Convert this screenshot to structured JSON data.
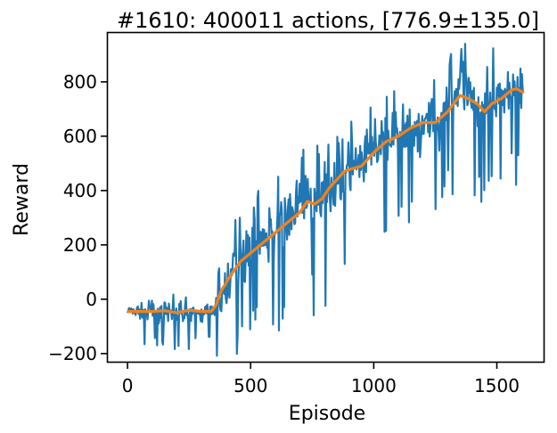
{
  "chart_data": {
    "type": "line",
    "title": "#1610: 400011 actions, [776.9±135.0]",
    "xlabel": "Episode",
    "ylabel": "Reward",
    "xlim": [
      -80,
      1690
    ],
    "ylim": [
      -230,
      980
    ],
    "xticks": [
      0,
      500,
      1000,
      1500
    ],
    "xtick_labels": [
      "0",
      "500",
      "1000",
      "1500"
    ],
    "yticks": [
      -200,
      0,
      200,
      400,
      600,
      800
    ],
    "ytick_labels": [
      "−200",
      "0",
      "200",
      "400",
      "600",
      "800"
    ],
    "grid": false,
    "legend": "none",
    "series": [
      {
        "color": "#1f77b4",
        "x": [
          0,
          30,
          60,
          90,
          120,
          150,
          180,
          210,
          240,
          270,
          300,
          330,
          350,
          370,
          400,
          430,
          460,
          490,
          520,
          550,
          580,
          610,
          640,
          670,
          700,
          730,
          760,
          790,
          820,
          850,
          880,
          910,
          940,
          970,
          1000,
          1030,
          1060,
          1090,
          1120,
          1150,
          1180,
          1210,
          1240,
          1270,
          1300,
          1330,
          1360,
          1390,
          1420,
          1450,
          1480,
          1510,
          1540,
          1570,
          1600,
          1610
        ],
        "values": [
          -45,
          -40,
          -50,
          -45,
          -40,
          -50,
          -55,
          -45,
          -40,
          -55,
          -50,
          -45,
          -40,
          -20,
          50,
          110,
          150,
          180,
          200,
          220,
          250,
          270,
          290,
          320,
          350,
          360,
          350,
          370,
          410,
          440,
          460,
          480,
          490,
          500,
          540,
          570,
          590,
          600,
          610,
          630,
          640,
          650,
          650,
          670,
          700,
          730,
          760,
          740,
          720,
          700,
          730,
          740,
          760,
          770,
          780,
          776
        ],
        "spread": [
          25,
          40,
          45,
          50,
          55,
          60,
          55,
          55,
          60,
          50,
          45,
          40,
          45,
          90,
          130,
          140,
          140,
          140,
          140,
          150,
          150,
          150,
          160,
          160,
          160,
          160,
          160,
          160,
          160,
          150,
          150,
          150,
          150,
          150,
          150,
          150,
          150,
          150,
          150,
          140,
          140,
          140,
          140,
          140,
          140,
          140,
          140,
          140,
          140,
          140,
          140,
          140,
          140,
          140,
          135,
          135
        ]
      },
      {
        "color": "#ff7f0e",
        "x": [
          0,
          50,
          100,
          150,
          200,
          250,
          300,
          340,
          360,
          380,
          420,
          460,
          500,
          540,
          580,
          620,
          660,
          700,
          730,
          760,
          790,
          820,
          850,
          880,
          910,
          950,
          1000,
          1050,
          1100,
          1150,
          1200,
          1250,
          1300,
          1350,
          1380,
          1420,
          1450,
          1480,
          1520,
          1560,
          1580,
          1610
        ],
        "values": [
          -45,
          -45,
          -45,
          -42,
          -50,
          -40,
          -45,
          -45,
          -20,
          30,
          90,
          140,
          170,
          200,
          230,
          260,
          290,
          320,
          360,
          350,
          370,
          410,
          440,
          470,
          480,
          490,
          540,
          580,
          600,
          630,
          650,
          650,
          690,
          750,
          740,
          720,
          690,
          720,
          740,
          770,
          775,
          760
        ]
      }
    ]
  }
}
